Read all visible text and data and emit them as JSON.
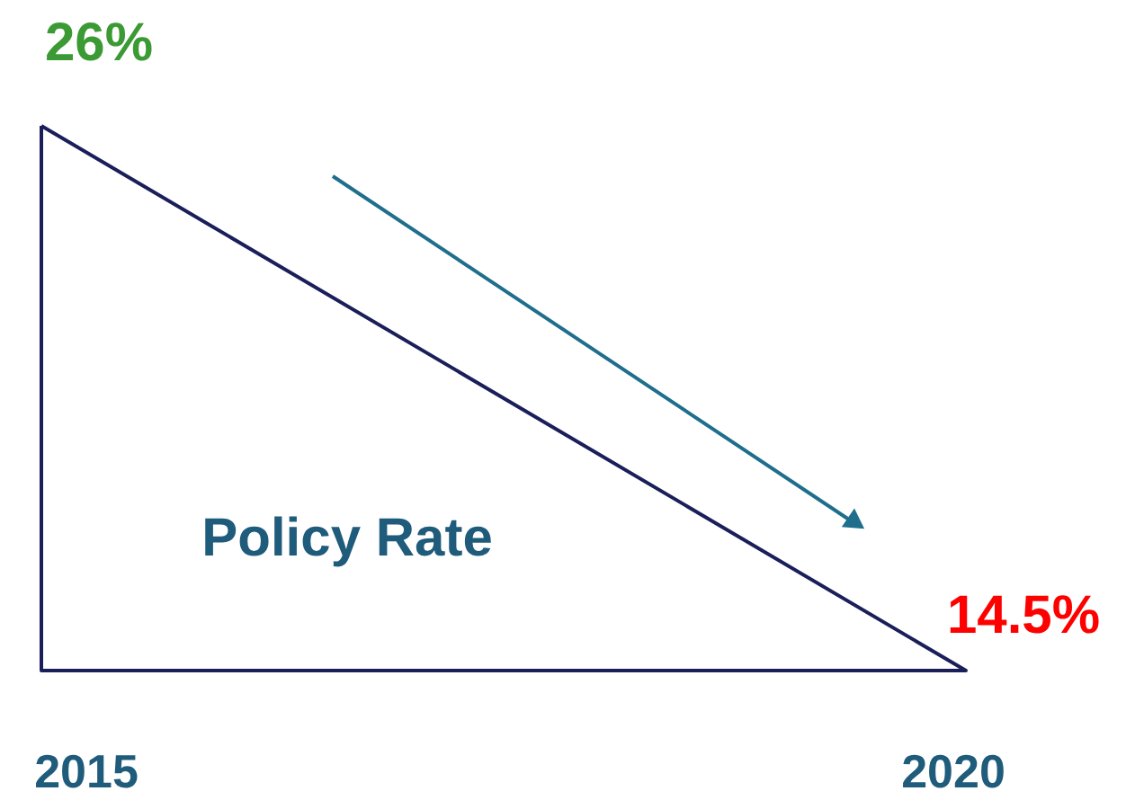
{
  "chart_data": {
    "type": "other",
    "categories": [
      "2015",
      "2020"
    ],
    "values": [
      26,
      14.5
    ],
    "value_labels": [
      "26%",
      "14.5%"
    ],
    "colors": [
      "#3c9a35",
      "#ff0000"
    ],
    "annotations": [
      "Policy Rate"
    ]
  }
}
